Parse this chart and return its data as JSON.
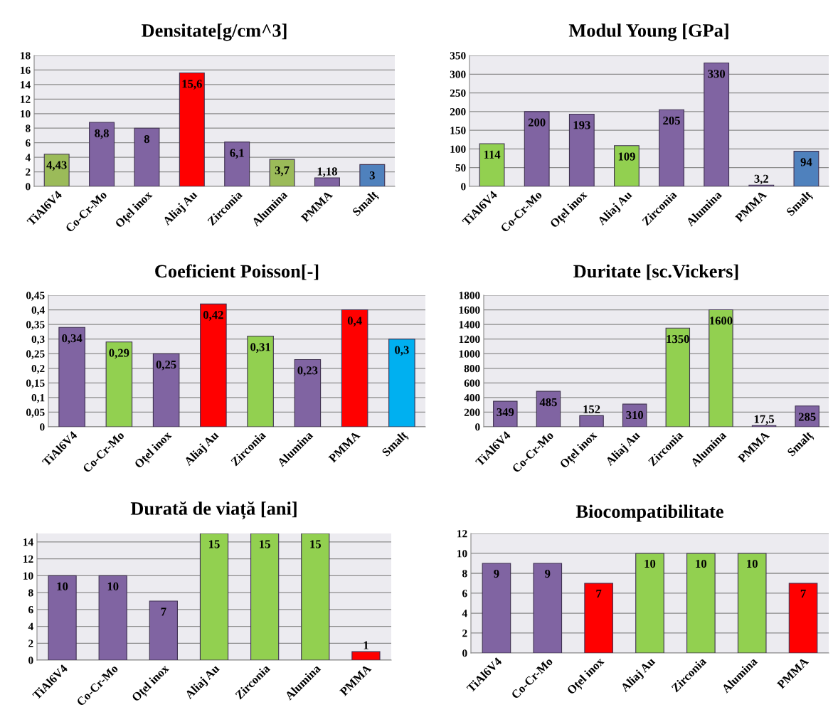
{
  "chart_data": [
    {
      "type": "bar",
      "title": "Densitate[g/cm^3]",
      "categories": [
        "TiAl6V4",
        "Co-Cr-Mo",
        "Oțel inox",
        "Aliaj Au",
        "Zirconia",
        "Alumina",
        "PMMA",
        "Smalț"
      ],
      "values": [
        4.43,
        8.8,
        8,
        15.6,
        6.1,
        3.7,
        1.18,
        3
      ],
      "colors": [
        "#9bbb59",
        "#8064a2",
        "#8064a2",
        "#ff0000",
        "#8064a2",
        "#9bbb59",
        "#8064a2",
        "#4f81bd"
      ],
      "ylim": [
        0,
        18
      ],
      "yticks": [
        0,
        2,
        4,
        6,
        8,
        10,
        12,
        14,
        16,
        18
      ],
      "grid": "y",
      "value_labels": [
        "4,43",
        "8,8",
        "8",
        "15,6",
        "6,1",
        "3,7",
        "1,18",
        "3"
      ]
    },
    {
      "type": "bar",
      "title": "Modul Young [GPa]",
      "categories": [
        "TiAl6V4",
        "Co-Cr-Mo",
        "Oțel inox",
        "Aliaj Au",
        "Zirconia",
        "Alumina",
        "PMMA",
        "Smalț"
      ],
      "values": [
        114,
        200,
        193,
        109,
        205,
        330,
        3.2,
        94
      ],
      "colors": [
        "#92d050",
        "#8064a2",
        "#8064a2",
        "#92d050",
        "#8064a2",
        "#8064a2",
        "#8064a2",
        "#4f81bd"
      ],
      "ylim": [
        0,
        350
      ],
      "yticks": [
        0,
        50,
        100,
        150,
        200,
        250,
        300,
        350
      ],
      "grid": "y",
      "value_labels": [
        "114",
        "200",
        "193",
        "109",
        "205",
        "330",
        "3,2",
        "94"
      ]
    },
    {
      "type": "bar",
      "title": "Coeficient Poisson[-]",
      "categories": [
        "TiAl6V4",
        "Co-Cr-Mo",
        "Oțel inox",
        "Aliaj Au",
        "Zirconia",
        "Alumina",
        "PMMA",
        "Smalț"
      ],
      "values": [
        0.34,
        0.29,
        0.25,
        0.42,
        0.31,
        0.23,
        0.4,
        0.3
      ],
      "colors": [
        "#8064a2",
        "#92d050",
        "#8064a2",
        "#ff0000",
        "#92d050",
        "#8064a2",
        "#ff0000",
        "#00b0f0"
      ],
      "ylim": [
        0,
        0.45
      ],
      "yticks": [
        0,
        {
          "value": 0.05,
          "label": "0,05"
        },
        {
          "value": 0.1,
          "label": "0,1"
        },
        {
          "value": 0.15,
          "label": "0,15"
        },
        {
          "value": 0.2,
          "label": "0,2"
        },
        {
          "value": 0.25,
          "label": "0,25"
        },
        {
          "value": 0.3,
          "label": "0,3"
        },
        {
          "value": 0.35,
          "label": "0,35"
        },
        {
          "value": 0.4,
          "label": "0,4"
        },
        {
          "value": 0.45,
          "label": "0,45"
        }
      ],
      "grid": "y",
      "value_labels": [
        "0,34",
        "0,29",
        "0,25",
        "0,42",
        "0,31",
        "0,23",
        "0,4",
        "0,3"
      ]
    },
    {
      "type": "bar",
      "title": "Duritate [sc.Vickers]",
      "categories": [
        "TiAl6V4",
        "Co-Cr-Mo",
        "Oțel inox",
        "Aliaj Au",
        "Zirconia",
        "Alumina",
        "PMMA",
        "Smalț"
      ],
      "values": [
        349,
        485,
        152,
        310,
        1350,
        1600,
        17.5,
        285
      ],
      "colors": [
        "#8064a2",
        "#8064a2",
        "#8064a2",
        "#8064a2",
        "#92d050",
        "#92d050",
        "#8064a2",
        "#8064a2"
      ],
      "ylim": [
        0,
        1800
      ],
      "yticks": [
        0,
        200,
        400,
        600,
        800,
        1000,
        1200,
        1400,
        1600,
        1800
      ],
      "grid": "y",
      "value_labels": [
        "349",
        "485",
        "152",
        "310",
        "1350",
        "1600",
        "17,5",
        "285"
      ]
    },
    {
      "type": "bar",
      "title": "Durată de viață [ani]",
      "categories": [
        "TiAl6V4",
        "Co-Cr-Mo",
        "Oțel inox",
        "Aliaj Au",
        "Zirconia",
        "Alumina",
        "PMMA"
      ],
      "values": [
        10,
        10,
        7,
        15,
        15,
        15,
        1
      ],
      "colors": [
        "#8064a2",
        "#8064a2",
        "#8064a2",
        "#92d050",
        "#92d050",
        "#92d050",
        "#ff0000"
      ],
      "ylim": [
        0,
        15
      ],
      "yticks": [
        0,
        2,
        4,
        6,
        8,
        10,
        12,
        14
      ],
      "grid": "y",
      "data_labels": true
    },
    {
      "type": "bar",
      "title": "Biocompatibilitate",
      "categories": [
        "TiAl6V4",
        "Co-Cr-Mo",
        "Oțel inox",
        "Aliaj Au",
        "Zirconia",
        "Alumina",
        "PMMA"
      ],
      "values": [
        9,
        9,
        7,
        10,
        10,
        10,
        7
      ],
      "colors": [
        "#8064a2",
        "#8064a2",
        "#ff0000",
        "#92d050",
        "#92d050",
        "#92d050",
        "#ff0000"
      ],
      "ylim": [
        0,
        12
      ],
      "yticks": [
        0,
        2,
        4,
        6,
        8,
        10,
        12
      ],
      "grid": "y",
      "data_labels": true
    }
  ]
}
